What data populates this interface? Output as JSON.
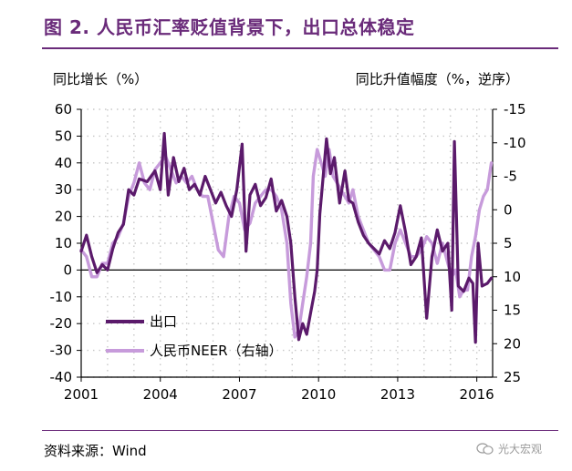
{
  "title": "图 2. 人民币汇率贬值背景下，出口总体稳定",
  "source": "资料来源：Wind",
  "watermark": "光大宏观",
  "chart_data": {
    "type": "line",
    "left_axis_label": "同比增长（%）",
    "right_axis_label": "同比升值幅度（%，逆序）",
    "x_ticks": [
      "2001",
      "2004",
      "2007",
      "2010",
      "2013",
      "2016"
    ],
    "xlim": [
      2001,
      2016.6
    ],
    "ylim_left": [
      -40,
      60
    ],
    "y_ticks_left": [
      60,
      50,
      40,
      30,
      20,
      10,
      0,
      -10,
      -20,
      -30,
      -40
    ],
    "ylim_right": [
      25,
      -15
    ],
    "y_ticks_right": [
      -15,
      -10,
      -5,
      0,
      5,
      10,
      15,
      20,
      25
    ],
    "right_axis_reversed": true,
    "grid": true,
    "legend_position": "lower-left",
    "series": [
      {
        "name": "出口",
        "axis": "left",
        "color": "#5b1a6b",
        "points": [
          [
            2001.0,
            7
          ],
          [
            2001.2,
            13
          ],
          [
            2001.4,
            5
          ],
          [
            2001.6,
            -1
          ],
          [
            2001.8,
            2
          ],
          [
            2002.0,
            0
          ],
          [
            2002.2,
            8
          ],
          [
            2002.4,
            14
          ],
          [
            2002.6,
            17
          ],
          [
            2002.8,
            30
          ],
          [
            2003.0,
            28
          ],
          [
            2003.2,
            34
          ],
          [
            2003.5,
            33
          ],
          [
            2003.8,
            37
          ],
          [
            2004.0,
            30
          ],
          [
            2004.15,
            51
          ],
          [
            2004.3,
            28
          ],
          [
            2004.5,
            42
          ],
          [
            2004.7,
            33
          ],
          [
            2004.9,
            38
          ],
          [
            2005.1,
            30
          ],
          [
            2005.3,
            32
          ],
          [
            2005.5,
            28
          ],
          [
            2005.7,
            35
          ],
          [
            2005.9,
            30
          ],
          [
            2006.1,
            25
          ],
          [
            2006.3,
            29
          ],
          [
            2006.5,
            24
          ],
          [
            2006.7,
            20
          ],
          [
            2006.9,
            30
          ],
          [
            2007.1,
            47
          ],
          [
            2007.25,
            7
          ],
          [
            2007.4,
            28
          ],
          [
            2007.6,
            32
          ],
          [
            2007.8,
            24
          ],
          [
            2008.0,
            27
          ],
          [
            2008.2,
            34
          ],
          [
            2008.4,
            22
          ],
          [
            2008.6,
            26
          ],
          [
            2008.8,
            20
          ],
          [
            2008.95,
            10
          ],
          [
            2009.1,
            -10
          ],
          [
            2009.25,
            -26
          ],
          [
            2009.4,
            -20
          ],
          [
            2009.55,
            -24
          ],
          [
            2009.7,
            -16
          ],
          [
            2009.85,
            -8
          ],
          [
            2009.95,
            0
          ],
          [
            2010.05,
            21
          ],
          [
            2010.15,
            32
          ],
          [
            2010.3,
            49
          ],
          [
            2010.45,
            36
          ],
          [
            2010.6,
            42
          ],
          [
            2010.8,
            25
          ],
          [
            2011.0,
            37
          ],
          [
            2011.15,
            26
          ],
          [
            2011.3,
            25
          ],
          [
            2011.5,
            18
          ],
          [
            2011.7,
            13
          ],
          [
            2011.9,
            10
          ],
          [
            2012.1,
            8
          ],
          [
            2012.3,
            6
          ],
          [
            2012.5,
            11
          ],
          [
            2012.7,
            8
          ],
          [
            2012.9,
            14
          ],
          [
            2013.1,
            24
          ],
          [
            2013.3,
            14
          ],
          [
            2013.5,
            2
          ],
          [
            2013.7,
            5
          ],
          [
            2013.9,
            12
          ],
          [
            2014.1,
            -18
          ],
          [
            2014.3,
            5
          ],
          [
            2014.5,
            15
          ],
          [
            2014.7,
            7
          ],
          [
            2014.9,
            10
          ],
          [
            2015.05,
            -15
          ],
          [
            2015.15,
            48
          ],
          [
            2015.3,
            -6
          ],
          [
            2015.5,
            -8
          ],
          [
            2015.7,
            -3
          ],
          [
            2015.85,
            -5
          ],
          [
            2015.95,
            -27
          ],
          [
            2016.05,
            10
          ],
          [
            2016.2,
            -6
          ],
          [
            2016.4,
            -5
          ],
          [
            2016.55,
            -3
          ]
        ]
      },
      {
        "name": "人民币NEER（右轴）",
        "axis": "right",
        "color": "#c79bdb",
        "points": [
          [
            2001.0,
            6
          ],
          [
            2001.2,
            7
          ],
          [
            2001.4,
            10
          ],
          [
            2001.6,
            10
          ],
          [
            2001.8,
            8
          ],
          [
            2002.0,
            8
          ],
          [
            2002.2,
            5
          ],
          [
            2002.4,
            4
          ],
          [
            2002.6,
            2
          ],
          [
            2002.8,
            -2
          ],
          [
            2003.0,
            -4
          ],
          [
            2003.2,
            -7
          ],
          [
            2003.4,
            -4
          ],
          [
            2003.6,
            -3
          ],
          [
            2003.8,
            -6
          ],
          [
            2004.0,
            -7
          ],
          [
            2004.2,
            -8
          ],
          [
            2004.4,
            -6
          ],
          [
            2004.6,
            -4
          ],
          [
            2004.8,
            -5
          ],
          [
            2005.0,
            -4
          ],
          [
            2005.2,
            -5
          ],
          [
            2005.4,
            -3
          ],
          [
            2005.6,
            -2
          ],
          [
            2005.8,
            -2
          ],
          [
            2006.0,
            2
          ],
          [
            2006.2,
            6
          ],
          [
            2006.4,
            7
          ],
          [
            2006.6,
            1
          ],
          [
            2006.8,
            -2
          ],
          [
            2007.0,
            -1
          ],
          [
            2007.2,
            3
          ],
          [
            2007.4,
            2
          ],
          [
            2007.6,
            -1
          ],
          [
            2007.8,
            -2
          ],
          [
            2008.0,
            -3
          ],
          [
            2008.2,
            -3
          ],
          [
            2008.4,
            -2
          ],
          [
            2008.6,
            0
          ],
          [
            2008.8,
            5
          ],
          [
            2008.95,
            14
          ],
          [
            2009.1,
            19
          ],
          [
            2009.25,
            18
          ],
          [
            2009.4,
            14
          ],
          [
            2009.55,
            10
          ],
          [
            2009.7,
            5
          ],
          [
            2009.8,
            -5
          ],
          [
            2009.95,
            -9
          ],
          [
            2010.1,
            -7
          ],
          [
            2010.25,
            -5
          ],
          [
            2010.4,
            -9
          ],
          [
            2010.55,
            -5
          ],
          [
            2010.7,
            -4
          ],
          [
            2010.85,
            -3
          ],
          [
            2011.0,
            -2
          ],
          [
            2011.15,
            -1
          ],
          [
            2011.3,
            -3
          ],
          [
            2011.5,
            1
          ],
          [
            2011.7,
            3
          ],
          [
            2011.9,
            5
          ],
          [
            2012.1,
            6
          ],
          [
            2012.3,
            7
          ],
          [
            2012.5,
            9
          ],
          [
            2012.7,
            9
          ],
          [
            2012.9,
            5
          ],
          [
            2013.1,
            3
          ],
          [
            2013.3,
            5
          ],
          [
            2013.5,
            7
          ],
          [
            2013.7,
            7
          ],
          [
            2013.9,
            6
          ],
          [
            2014.1,
            4
          ],
          [
            2014.3,
            5
          ],
          [
            2014.5,
            8
          ],
          [
            2014.7,
            5
          ],
          [
            2014.9,
            8
          ],
          [
            2015.05,
            10
          ],
          [
            2015.2,
            9
          ],
          [
            2015.35,
            13
          ],
          [
            2015.5,
            12
          ],
          [
            2015.65,
            12
          ],
          [
            2015.8,
            7
          ],
          [
            2015.95,
            4
          ],
          [
            2016.1,
            0
          ],
          [
            2016.25,
            -2
          ],
          [
            2016.4,
            -3
          ],
          [
            2016.55,
            -7
          ]
        ]
      }
    ]
  }
}
